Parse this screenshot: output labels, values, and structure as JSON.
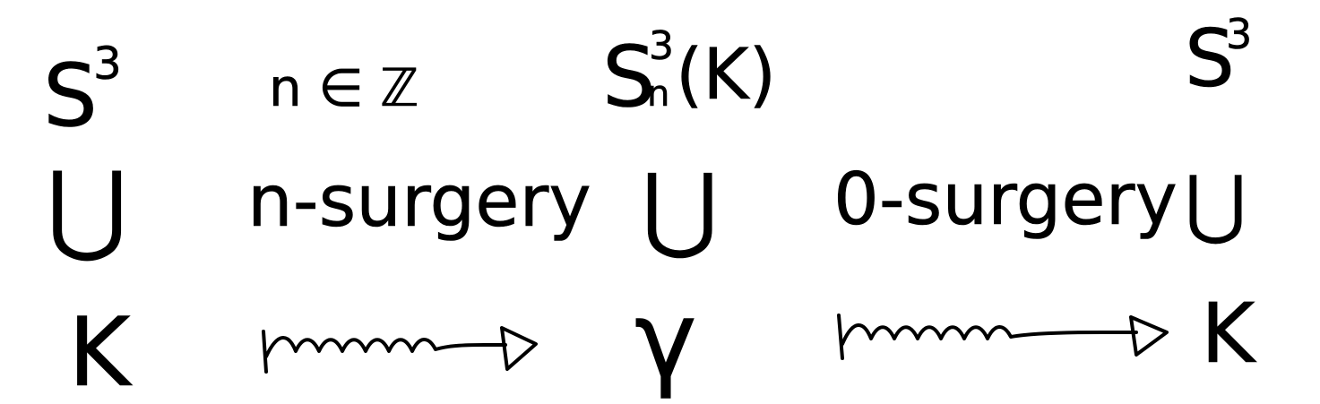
{
  "ink_color": "#000000",
  "row_top": {
    "left_space": {
      "base": "S",
      "sup": "3"
    },
    "condition": "n ∈ ℤ",
    "middle_space": {
      "base": "S",
      "sup": "3",
      "sub": "n",
      "arg": "(K)"
    },
    "right_space": {
      "base": "S",
      "sup": "3"
    }
  },
  "row_middle": {
    "left_subset": "⋃",
    "left_arrow_label": "n-surgery",
    "middle_subset": "⋃",
    "right_arrow_label": "0-surgery",
    "right_subset": "⋃"
  },
  "row_bottom": {
    "left_knot": "K",
    "left_arrow_icon": "squiggly-arrow-icon",
    "middle_knot": "γ",
    "right_arrow_icon": "squiggly-arrow-icon",
    "right_knot": "K"
  }
}
